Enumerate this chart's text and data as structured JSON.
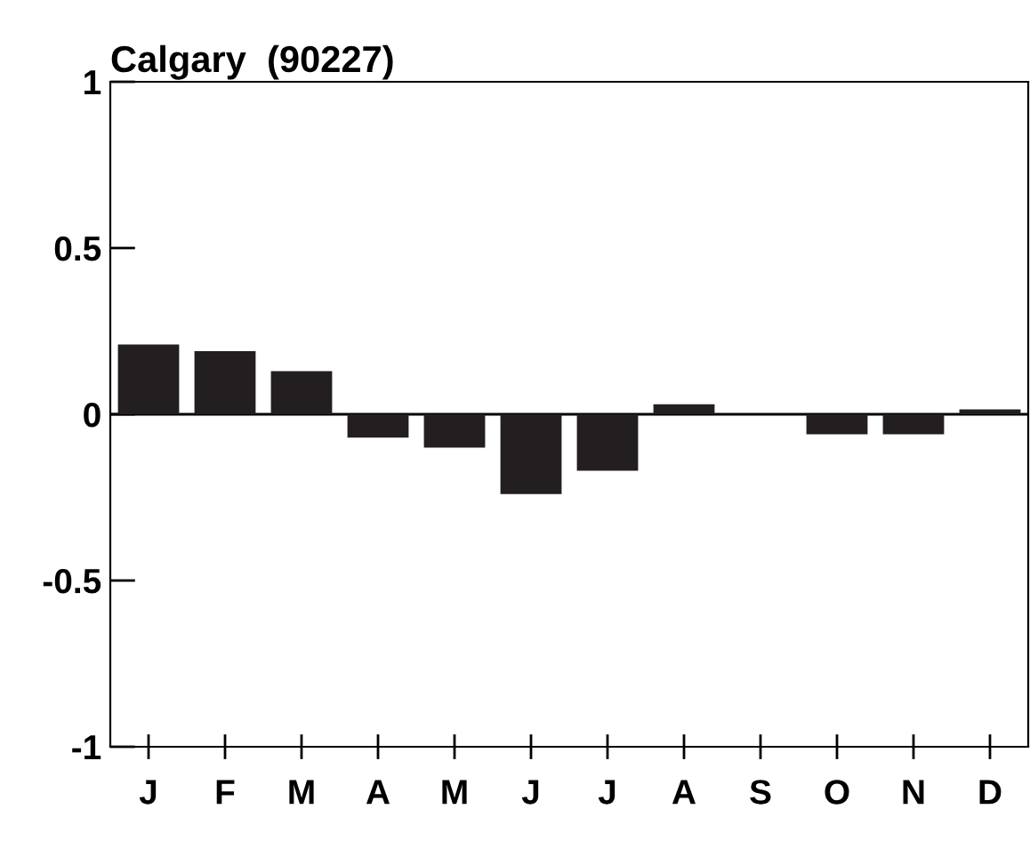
{
  "chart_data": {
    "type": "bar",
    "title": "Calgary  (90227)",
    "categories": [
      "J",
      "F",
      "M",
      "A",
      "M",
      "J",
      "J",
      "A",
      "S",
      "O",
      "N",
      "D"
    ],
    "values": [
      0.21,
      0.19,
      0.13,
      -0.07,
      -0.1,
      -0.24,
      -0.17,
      0.03,
      0,
      -0.06,
      -0.06,
      0.015
    ],
    "color": "#231f20",
    "ylim": [
      -1,
      1
    ],
    "yticks": [
      -1,
      {
        "value": -0.5,
        "label": "-0.5"
      },
      0,
      0.5,
      1
    ],
    "ref_lines": [
      {
        "axis": "y",
        "value": 0,
        "color": "#000000"
      }
    ],
    "grid": false
  }
}
